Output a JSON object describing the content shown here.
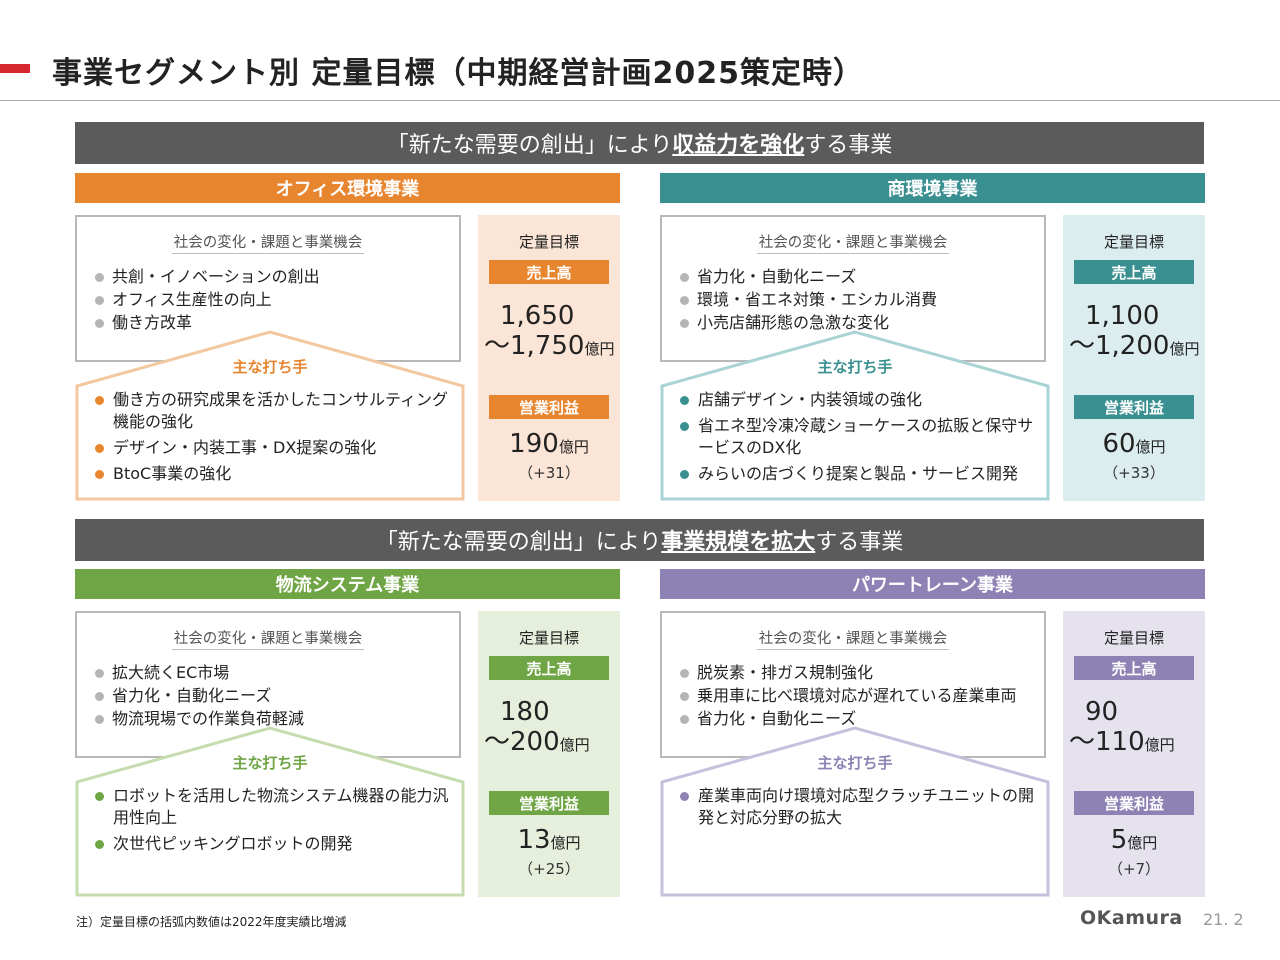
{
  "title": "事業セグメント別 定量目標（中期経営計画2025策定時）",
  "banners": [
    {
      "pre": "「新たな需要の創出」により",
      "hl": "収益力を強化",
      "post": "する事業"
    },
    {
      "pre": "「新たな需要の創出」により",
      "hl": "事業規模を拡大",
      "post": "する事業"
    }
  ],
  "common": {
    "box_title": "社会の変化・課題と事業機会",
    "actions_title": "主な打ち手",
    "target_head": "定量目標",
    "sales_badge": "売上高",
    "profit_badge": "営業利益",
    "unit": "億円"
  },
  "colors": {
    "title_accent": "#d7282f",
    "banner": "#5b5b5b"
  },
  "segments": [
    {
      "name": "オフィス環境事業",
      "color": "#e8852f",
      "bg": "#fbe5d6",
      "house": "#f3c7a0",
      "opportunities": [
        "共創・イノベーションの創出",
        "オフィス生産性の向上",
        "働き方改革"
      ],
      "actions": [
        "働き方の研究成果を活かしたコンサルティング機能の強化",
        "デザイン・内装工事・DX提案の強化",
        "BtoC事業の強化"
      ],
      "sales_line1": "1,650",
      "sales_line2": "～1,750",
      "profit": "190",
      "profit_delta": "（+31）"
    },
    {
      "name": "商環境事業",
      "color": "#3a8f91",
      "bg": "#dcedef",
      "house": "#a9d3d5",
      "opportunities": [
        "省力化・自動化ニーズ",
        "環境・省エネ対策・エシカル消費",
        "小売店舗形態の急激な変化"
      ],
      "actions": [
        "店舗デザイン・内装領域の強化",
        "省エネ型冷凍冷蔵ショーケースの拡販と保守サービスのDX化",
        "みらいの店づくり提案と製品・サービス開発"
      ],
      "sales_line1": "1,100",
      "sales_line2": "～1,200",
      "profit": "60",
      "profit_delta": "（+33）"
    },
    {
      "name": "物流システム事業",
      "color": "#6fa544",
      "bg": "#e6efdb",
      "house": "#c5dcae",
      "opportunities": [
        "拡大続くEC市場",
        "省力化・自動化ニーズ",
        "物流現場での作業負荷軽減"
      ],
      "actions": [
        "ロボットを活用した物流システム機器の能力汎用性向上",
        "次世代ピッキングロボットの開発"
      ],
      "sales_line1": "180",
      "sales_line2": "～200",
      "profit": "13",
      "profit_delta": "（+25）"
    },
    {
      "name": "パワートレーン事業",
      "color": "#8d82b3",
      "bg": "#e5e2ee",
      "house": "#c6c0dc",
      "opportunities": [
        "脱炭素・排ガス規制強化",
        "乗用車に比べ環境対応が遅れている産業車両",
        "省力化・自動化ニーズ"
      ],
      "actions": [
        "産業車両向け環境対応型クラッチユニットの開発と対応分野の拡大"
      ],
      "sales_line1": "90",
      "sales_line2": "～110",
      "profit": "5",
      "profit_delta": "（+7）"
    }
  ],
  "footer": {
    "note": "注）定量目標の括弧内数値は2022年度実績比増減",
    "logo": "OKamura",
    "page": "21. 2"
  }
}
